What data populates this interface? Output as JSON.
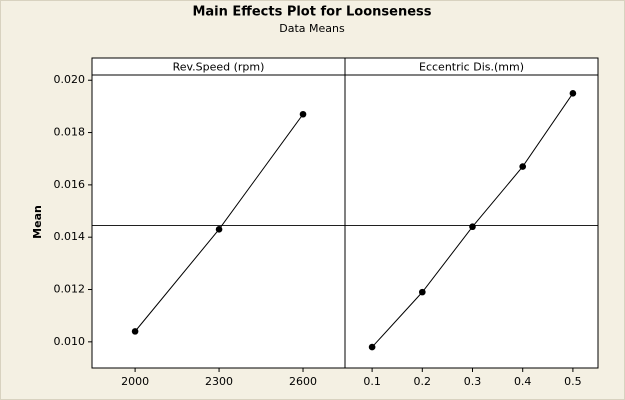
{
  "chart_data": {
    "type": "line",
    "title": "Main Effects Plot for Loonseness",
    "subtitle": "Data Means",
    "ylabel": "Mean",
    "ylim": [
      0.009,
      0.0202
    ],
    "yticks": [
      {
        "value": 0.01,
        "label": "0.010"
      },
      {
        "value": 0.012,
        "label": "0.012"
      },
      {
        "value": 0.014,
        "label": "0.014"
      },
      {
        "value": 0.016,
        "label": "0.016"
      },
      {
        "value": 0.018,
        "label": "0.018"
      },
      {
        "value": 0.02,
        "label": "0.020"
      }
    ],
    "reference_line": 0.01445,
    "color": "#000000",
    "panels": [
      {
        "label": "Rev.Speed (rpm)",
        "x": [
          2000,
          2300,
          2600
        ],
        "values": [
          0.0104,
          0.0143,
          0.0187
        ],
        "xlim": [
          1846,
          2750
        ],
        "xticks": [
          2000,
          2300,
          2600
        ]
      },
      {
        "label": "Eccentric Dis.(mm)",
        "x": [
          0.1,
          0.2,
          0.3,
          0.4,
          0.5
        ],
        "values": [
          0.0098,
          0.0119,
          0.0144,
          0.0167,
          0.0195
        ],
        "xlim": [
          0.046,
          0.55
        ],
        "xticks": [
          0.1,
          0.2,
          0.3,
          0.4,
          0.5
        ]
      }
    ]
  }
}
